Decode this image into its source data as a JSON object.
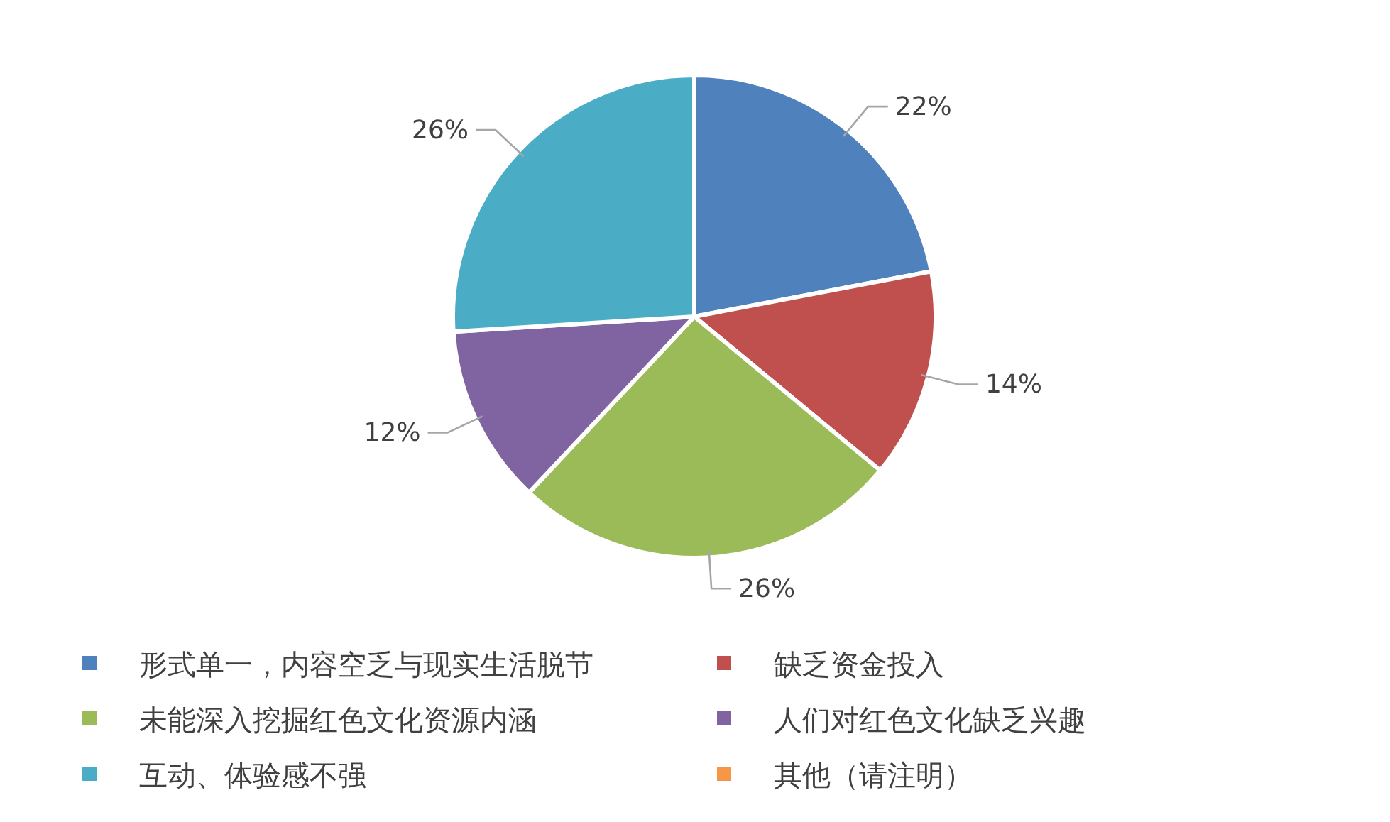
{
  "chart_data": {
    "type": "pie",
    "categories": [
      "形式单一，内容空乏与现实生活脱节",
      "缺乏资金投入",
      "未能深入挖掘红色文化资源内涵",
      "人们对红色文化缺乏兴趣",
      "互动、体验感不强",
      "其他（请注明）"
    ],
    "values": [
      22,
      14,
      26,
      12,
      26,
      0
    ],
    "value_labels": [
      "22%",
      "14%",
      "26%",
      "12%",
      "26%",
      null
    ],
    "colors": [
      "#4f81bd",
      "#c0504d",
      "#9bbb59",
      "#8064a2",
      "#4bacc6",
      "#f79646"
    ],
    "legend": "bottom"
  }
}
